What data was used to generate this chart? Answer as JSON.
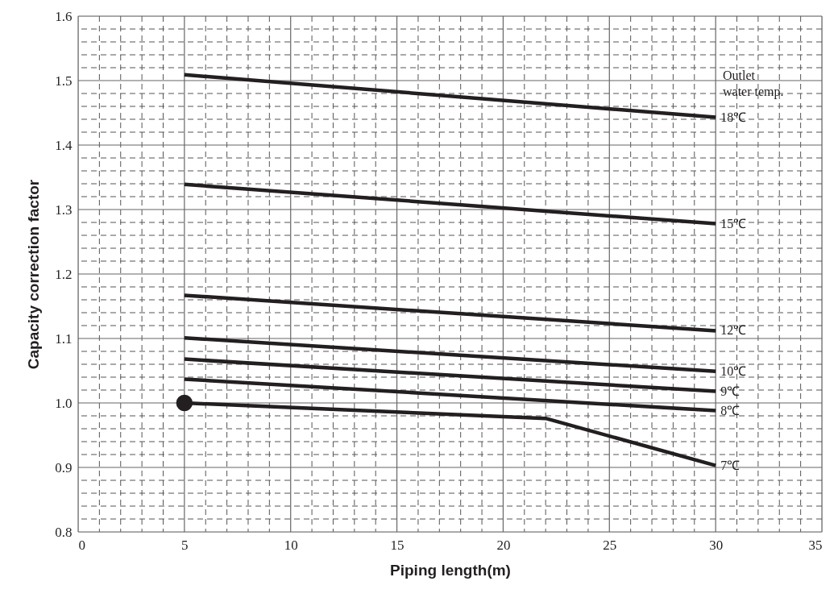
{
  "chart_data": {
    "type": "line",
    "xlabel": "Piping length(m)",
    "ylabel": "Capacity correction factor",
    "annotations": [
      "Outlet\nwater temp."
    ],
    "series": [
      {
        "name": "18℃",
        "color": "#231f20",
        "x": [
          5,
          30
        ],
        "values": [
          1.509,
          1.443
        ]
      },
      {
        "name": "15℃",
        "color": "#231f20",
        "x": [
          5,
          30
        ],
        "values": [
          1.339,
          1.278
        ]
      },
      {
        "name": "12℃",
        "color": "#231f20",
        "x": [
          5,
          30
        ],
        "values": [
          1.167,
          1.112
        ]
      },
      {
        "name": "10℃",
        "color": "#231f20",
        "x": [
          5,
          30
        ],
        "values": [
          1.101,
          1.049
        ]
      },
      {
        "name": "9℃",
        "color": "#231f20",
        "x": [
          5,
          30
        ],
        "values": [
          1.068,
          1.018
        ]
      },
      {
        "name": "8℃",
        "color": "#231f20",
        "x": [
          5,
          30
        ],
        "values": [
          1.037,
          0.988
        ]
      },
      {
        "name": "7℃",
        "color": "#231f20",
        "x": [
          5,
          22,
          30
        ],
        "values": [
          1.0,
          0.976,
          0.903
        ]
      },
      {
        "type": "scatter",
        "marker": "circle",
        "color": "#231f20",
        "x": [
          5
        ],
        "values": [
          1.0
        ]
      }
    ],
    "xlim": [
      0,
      35
    ],
    "ylim": [
      0.8,
      1.6
    ],
    "grid": true,
    "line_style": "solid",
    "marker": "none",
    "xticks": [
      0,
      {
        "value": 1,
        "label": null
      },
      {
        "value": 2,
        "label": null
      },
      {
        "value": 3,
        "label": null
      },
      {
        "value": 4,
        "label": null
      },
      5,
      {
        "value": 6,
        "label": null
      },
      {
        "value": 7,
        "label": null
      },
      {
        "value": 8,
        "label": null
      },
      {
        "value": 9,
        "label": null
      },
      10,
      {
        "value": 11,
        "label": null
      },
      {
        "value": 12,
        "label": null
      },
      {
        "value": 13,
        "label": null
      },
      {
        "value": 14,
        "label": null
      },
      15,
      {
        "value": 16,
        "label": null
      },
      {
        "value": 17,
        "label": null
      },
      {
        "value": 18,
        "label": null
      },
      {
        "value": 19,
        "label": null
      },
      20,
      {
        "value": 21,
        "label": null
      },
      {
        "value": 22,
        "label": null
      },
      {
        "value": 23,
        "label": null
      },
      {
        "value": 24,
        "label": null
      },
      25,
      {
        "value": 26,
        "label": null
      },
      {
        "value": 27,
        "label": null
      },
      {
        "value": 28,
        "label": null
      },
      {
        "value": 29,
        "label": null
      },
      30,
      {
        "value": 31,
        "label": null
      },
      {
        "value": 32,
        "label": null
      },
      {
        "value": 33,
        "label": null
      },
      {
        "value": 34,
        "label": null
      },
      35
    ],
    "yticks": [
      {
        "value": 0.8,
        "label": "0.8"
      },
      {
        "value": 0.82,
        "label": null
      },
      {
        "value": 0.84,
        "label": null
      },
      {
        "value": 0.86,
        "label": null
      },
      {
        "value": 0.88,
        "label": null
      },
      {
        "value": 0.9,
        "label": "0.9"
      },
      {
        "value": 0.92,
        "label": null
      },
      {
        "value": 0.94,
        "label": null
      },
      {
        "value": 0.96,
        "label": null
      },
      {
        "value": 0.98,
        "label": null
      },
      {
        "value": 1.0,
        "label": "1.0"
      },
      {
        "value": 1.02,
        "label": null
      },
      {
        "value": 1.04,
        "label": null
      },
      {
        "value": 1.06,
        "label": null
      },
      {
        "value": 1.08,
        "label": null
      },
      {
        "value": 1.1,
        "label": "1.1"
      },
      {
        "value": 1.12,
        "label": null
      },
      {
        "value": 1.14,
        "label": null
      },
      {
        "value": 1.16,
        "label": null
      },
      {
        "value": 1.18,
        "label": null
      },
      {
        "value": 1.2,
        "label": "1.2"
      },
      {
        "value": 1.22,
        "label": null
      },
      {
        "value": 1.24,
        "label": null
      },
      {
        "value": 1.26,
        "label": null
      },
      {
        "value": 1.28,
        "label": null
      },
      {
        "value": 1.3,
        "label": "1.3"
      },
      {
        "value": 1.32,
        "label": null
      },
      {
        "value": 1.34,
        "label": null
      },
      {
        "value": 1.36,
        "label": null
      },
      {
        "value": 1.38,
        "label": null
      },
      {
        "value": 1.4,
        "label": "1.4"
      },
      {
        "value": 1.42,
        "label": null
      },
      {
        "value": 1.44,
        "label": null
      },
      {
        "value": 1.46,
        "label": null
      },
      {
        "value": 1.48,
        "label": null
      },
      {
        "value": 1.5,
        "label": "1.5"
      },
      {
        "value": 1.52,
        "label": null
      },
      {
        "value": 1.54,
        "label": null
      },
      {
        "value": 1.56,
        "label": null
      },
      {
        "value": 1.58,
        "label": null
      },
      {
        "value": 1.6,
        "label": "1.6"
      }
    ]
  }
}
